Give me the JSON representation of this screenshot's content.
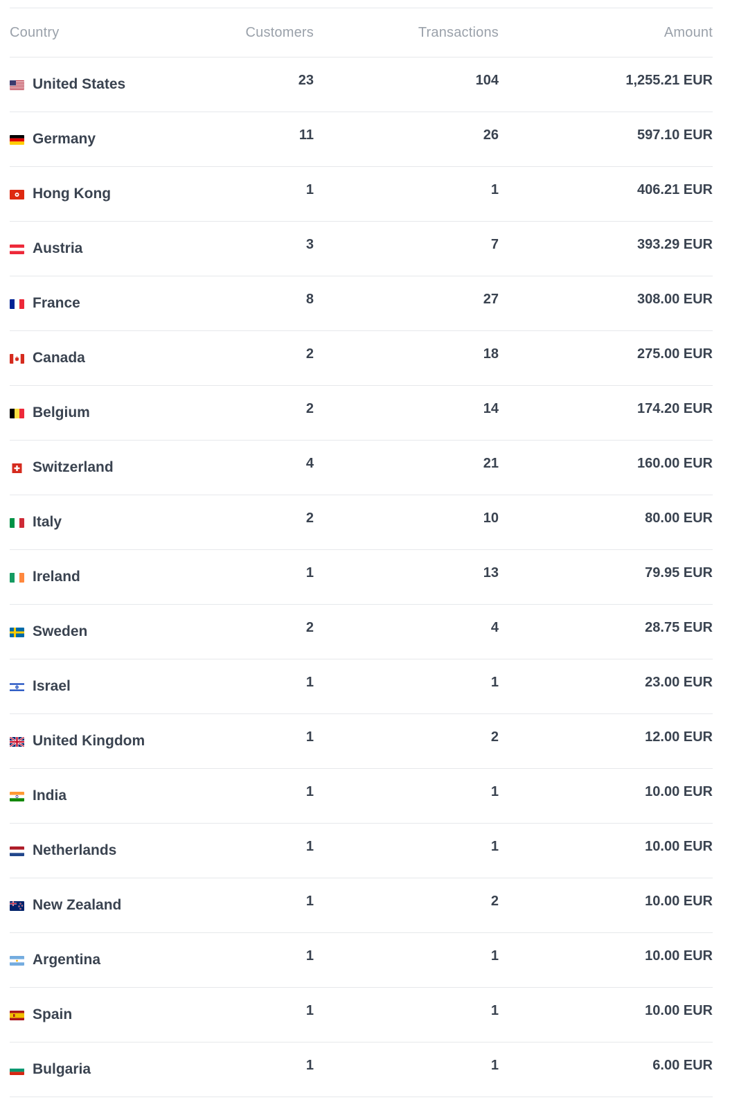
{
  "table": {
    "headers": {
      "country": "Country",
      "customers": "Customers",
      "transactions": "Transactions",
      "amount": "Amount"
    },
    "rows": [
      {
        "country": "United States",
        "flag": "us-flag-icon",
        "customers": "23",
        "transactions": "104",
        "amount": "1,255.21 EUR"
      },
      {
        "country": "Germany",
        "flag": "de-flag-icon",
        "customers": "11",
        "transactions": "26",
        "amount": "597.10 EUR"
      },
      {
        "country": "Hong Kong",
        "flag": "hk-flag-icon",
        "customers": "1",
        "transactions": "1",
        "amount": "406.21 EUR"
      },
      {
        "country": "Austria",
        "flag": "at-flag-icon",
        "customers": "3",
        "transactions": "7",
        "amount": "393.29 EUR"
      },
      {
        "country": "France",
        "flag": "fr-flag-icon",
        "customers": "8",
        "transactions": "27",
        "amount": "308.00 EUR"
      },
      {
        "country": "Canada",
        "flag": "ca-flag-icon",
        "customers": "2",
        "transactions": "18",
        "amount": "275.00 EUR"
      },
      {
        "country": "Belgium",
        "flag": "be-flag-icon",
        "customers": "2",
        "transactions": "14",
        "amount": "174.20 EUR"
      },
      {
        "country": "Switzerland",
        "flag": "ch-flag-icon",
        "customers": "4",
        "transactions": "21",
        "amount": "160.00 EUR"
      },
      {
        "country": "Italy",
        "flag": "it-flag-icon",
        "customers": "2",
        "transactions": "10",
        "amount": "80.00 EUR"
      },
      {
        "country": "Ireland",
        "flag": "ie-flag-icon",
        "customers": "1",
        "transactions": "13",
        "amount": "79.95 EUR"
      },
      {
        "country": "Sweden",
        "flag": "se-flag-icon",
        "customers": "2",
        "transactions": "4",
        "amount": "28.75 EUR"
      },
      {
        "country": "Israel",
        "flag": "il-flag-icon",
        "customers": "1",
        "transactions": "1",
        "amount": "23.00 EUR"
      },
      {
        "country": "United Kingdom",
        "flag": "gb-flag-icon",
        "customers": "1",
        "transactions": "2",
        "amount": "12.00 EUR"
      },
      {
        "country": "India",
        "flag": "in-flag-icon",
        "customers": "1",
        "transactions": "1",
        "amount": "10.00 EUR"
      },
      {
        "country": "Netherlands",
        "flag": "nl-flag-icon",
        "customers": "1",
        "transactions": "1",
        "amount": "10.00 EUR"
      },
      {
        "country": "New Zealand",
        "flag": "nz-flag-icon",
        "customers": "1",
        "transactions": "2",
        "amount": "10.00 EUR"
      },
      {
        "country": "Argentina",
        "flag": "ar-flag-icon",
        "customers": "1",
        "transactions": "1",
        "amount": "10.00 EUR"
      },
      {
        "country": "Spain",
        "flag": "es-flag-icon",
        "customers": "1",
        "transactions": "1",
        "amount": "10.00 EUR"
      },
      {
        "country": "Bulgaria",
        "flag": "bg-flag-icon",
        "customers": "1",
        "transactions": "1",
        "amount": "6.00 EUR"
      }
    ]
  },
  "colors": {
    "text": "#3a4350",
    "header_text": "#9aa1aa",
    "divider": "#e6e8eb"
  }
}
